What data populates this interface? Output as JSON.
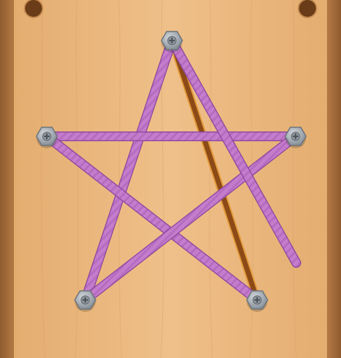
{
  "game": {
    "screen": "rope-untangle-level",
    "board": {
      "material": "wood",
      "board_color": "#e9b57a",
      "frame_color": "#a8703f",
      "hole_color": "#6a3c18"
    },
    "rope_color": "#c47ccc",
    "rope_stroke_color": "#8f4aa0",
    "stick_color": "#8b4a16",
    "stick_edge_color": "#e39a3a",
    "peg_color": "#9ea6ae",
    "pegs": [
      {
        "id": "top",
        "icon": "screw-icon"
      },
      {
        "id": "left",
        "icon": "screw-icon"
      },
      {
        "id": "right",
        "icon": "screw-icon"
      },
      {
        "id": "bottom-left",
        "icon": "screw-icon"
      },
      {
        "id": "bottom-right",
        "icon": "screw-icon"
      }
    ],
    "ropes": [
      {
        "id": "rope-top-to-bottom-left",
        "from": "top",
        "to": "bottom-left"
      },
      {
        "id": "rope-left-to-right",
        "from": "left",
        "to": "right"
      },
      {
        "id": "rope-left-to-bottom-right",
        "from": "left",
        "to": "bottom-right"
      },
      {
        "id": "rope-bottom-left-to-right",
        "from": "bottom-left",
        "to": "right"
      },
      {
        "id": "rope-top-loose",
        "from": "top",
        "to": null
      }
    ],
    "sticks": [
      {
        "id": "stick-top-to-bottom-right",
        "from": "top",
        "to": "bottom-right"
      }
    ]
  }
}
